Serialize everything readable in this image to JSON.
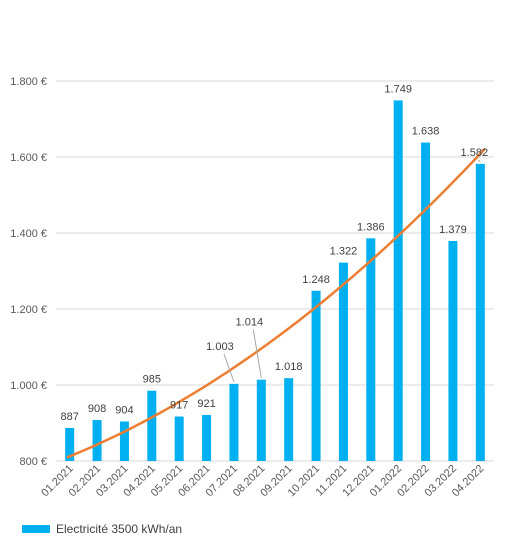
{
  "chart_data": {
    "type": "bar",
    "categories": [
      "01.2021",
      "02.2021",
      "03.2021",
      "04.2021",
      "05.2021",
      "06.2021",
      "07.2021",
      "08.2021",
      "09.2021",
      "10.2021",
      "11.2021",
      "12.2021",
      "01.2022",
      "02.2022",
      "03.2022",
      "04.2022"
    ],
    "series": [
      {
        "name": "Electricité 3500 kWh/an",
        "values": [
          887,
          908,
          904,
          985,
          917,
          921,
          1003,
          1014,
          1018,
          1248,
          1322,
          1386,
          1749,
          1638,
          1379,
          1582
        ],
        "labels": [
          "887",
          "908",
          "904",
          "985",
          "917",
          "921",
          "1.003",
          "1.014",
          "1.018",
          "1.248",
          "1.322",
          "1.386",
          "1.749",
          "1.638",
          "1.379",
          "1.582"
        ],
        "color": "#00b0f0"
      }
    ],
    "trendline": {
      "type": "polynomial",
      "color": "#ed7d31",
      "start": 810,
      "end": 1620
    },
    "yticks": [
      800,
      1000,
      1200,
      1400,
      1600,
      1800
    ],
    "ytick_labels": [
      "800 €",
      "1.000 €",
      "1.200 €",
      "1.400 €",
      "1.600 €",
      "1.800 €"
    ],
    "ylim": [
      800,
      1900
    ],
    "grid": true,
    "legend_position": "bottom-left"
  }
}
